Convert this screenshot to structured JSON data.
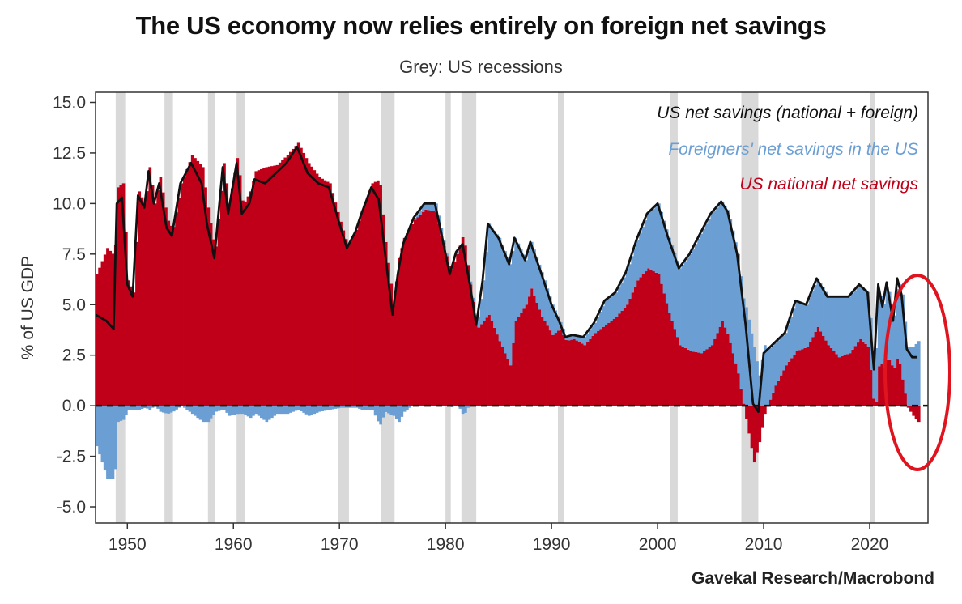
{
  "colors": {
    "total": "#111111",
    "foreign": "#6b9fd4",
    "national": "#c00018",
    "recession": "#d9d9d9",
    "annotation": "#e0141e"
  },
  "chart_data": {
    "type": "area",
    "title": "The US economy now relies entirely on foreign net savings",
    "subtitle": "Grey: US recessions",
    "ylabel": "% of US GDP",
    "xlabel": "",
    "source": "Gavekal Research/Macrobond",
    "xlim": [
      1947,
      2025.5
    ],
    "ylim": [
      -5.8,
      15.5
    ],
    "x_ticks": [
      1950,
      1960,
      1970,
      1980,
      1990,
      2000,
      2010,
      2020
    ],
    "y_ticks": [
      -5.0,
      -2.5,
      0.0,
      2.5,
      5.0,
      7.5,
      10.0,
      12.5,
      15.0
    ],
    "y_tick_labels": [
      "-5.0",
      "-2.5",
      "0.0",
      "2.5",
      "5.0",
      "7.5",
      "10.0",
      "12.5",
      "15.0"
    ],
    "x_tick_labels": [
      "1950",
      "1960",
      "1970",
      "1980",
      "1990",
      "2000",
      "2010",
      "2020"
    ],
    "legend_position": "top-right",
    "recessions": [
      [
        1948.9,
        1949.8
      ],
      [
        1953.5,
        1954.3
      ],
      [
        1957.6,
        1958.3
      ],
      [
        1960.3,
        1961.1
      ],
      [
        1969.9,
        1970.9
      ],
      [
        1973.9,
        1975.2
      ],
      [
        1980.0,
        1980.5
      ],
      [
        1981.5,
        1982.9
      ],
      [
        1990.6,
        1991.2
      ],
      [
        2001.2,
        2001.9
      ],
      [
        2007.9,
        2009.5
      ],
      [
        2020.0,
        2020.5
      ]
    ],
    "series": [
      {
        "name": "US net savings (national + foreign)",
        "x": [
          1947,
          1948,
          1948.7,
          1949,
          1949.5,
          1950,
          1950.5,
          1951,
          1951.6,
          1952,
          1952.5,
          1953,
          1953.7,
          1954.2,
          1955,
          1956,
          1957,
          1957.5,
          1958.2,
          1959,
          1959.5,
          1960.3,
          1960.8,
          1961.5,
          1962,
          1963,
          1964,
          1965,
          1966,
          1967,
          1968,
          1969,
          1970,
          1970.7,
          1971.5,
          1972,
          1973,
          1973.7,
          1974.2,
          1975,
          1975.5,
          1976,
          1977,
          1978,
          1979,
          1979.5,
          1980.4,
          1981,
          1981.6,
          1982.3,
          1982.9,
          1983.5,
          1984,
          1985,
          1986,
          1986.5,
          1987.5,
          1988,
          1989,
          1990,
          1990.7,
          1991.3,
          1992,
          1993,
          1994,
          1995,
          1996,
          1997,
          1998,
          1999,
          2000,
          2001,
          2002,
          2003,
          2004,
          2005,
          2006,
          2006.6,
          2007.5,
          2008.3,
          2009,
          2009.5,
          2010,
          2011,
          2012,
          2013,
          2014,
          2015,
          2016,
          2017,
          2018,
          2019,
          2019.8,
          2020.4,
          2020.8,
          2021.2,
          2021.6,
          2022.2,
          2022.6,
          2023,
          2023.5,
          2024,
          2024.5
        ],
        "values": [
          4.5,
          4.2,
          3.8,
          10.0,
          10.3,
          6.0,
          5.4,
          10.4,
          9.8,
          11.6,
          10.0,
          11.0,
          8.8,
          8.4,
          11.0,
          12.0,
          11.0,
          9.0,
          7.3,
          11.8,
          9.5,
          12.0,
          9.5,
          10.0,
          11.2,
          11.0,
          11.5,
          12.0,
          12.8,
          11.5,
          11.0,
          10.8,
          9.0,
          7.8,
          8.6,
          9.4,
          10.8,
          10.2,
          8.0,
          4.5,
          6.5,
          8.0,
          9.3,
          10.0,
          10.0,
          8.8,
          6.5,
          7.6,
          8.0,
          6.0,
          4.0,
          6.2,
          9.0,
          8.3,
          7.0,
          8.3,
          7.2,
          8.1,
          6.6,
          5.0,
          4.2,
          3.4,
          3.5,
          3.4,
          4.1,
          5.2,
          5.6,
          6.6,
          8.2,
          9.5,
          10.0,
          8.3,
          6.8,
          7.5,
          8.5,
          9.5,
          10.1,
          9.6,
          7.5,
          4.0,
          0.1,
          -0.3,
          2.6,
          3.1,
          3.6,
          5.2,
          5.0,
          6.3,
          5.4,
          5.4,
          5.4,
          6.0,
          5.6,
          1.8,
          6.0,
          4.9,
          6.1,
          4.2,
          6.3,
          5.5,
          2.8,
          2.4,
          2.4
        ]
      },
      {
        "name": "US national net savings",
        "x": [
          1947,
          1948,
          1948.7,
          1949,
          1949.5,
          1950,
          1950.5,
          1951,
          1951.6,
          1952,
          1952.5,
          1953,
          1953.7,
          1954.2,
          1955,
          1956,
          1957,
          1957.5,
          1958.2,
          1959,
          1959.5,
          1960.3,
          1960.8,
          1961.5,
          1962,
          1963,
          1964,
          1965,
          1966,
          1967,
          1968,
          1969,
          1970,
          1970.7,
          1971.5,
          1972,
          1973,
          1973.7,
          1974.2,
          1975,
          1975.5,
          1976,
          1977,
          1978,
          1979,
          1979.5,
          1980.4,
          1981,
          1981.6,
          1982.3,
          1982.9,
          1983.5,
          1984,
          1985,
          1986,
          1986.5,
          1987.5,
          1988,
          1989,
          1990,
          1990.7,
          1991.3,
          1992,
          1993,
          1994,
          1995,
          1996,
          1997,
          1998,
          1999,
          2000,
          2001,
          2002,
          2003,
          2004,
          2005,
          2006,
          2006.6,
          2007.5,
          2008.3,
          2009,
          2009.5,
          2010,
          2011,
          2012,
          2013,
          2014,
          2015,
          2016,
          2017,
          2018,
          2019,
          2019.8,
          2020.4,
          2020.8,
          2021.2,
          2021.6,
          2022.2,
          2022.6,
          2023,
          2023.5,
          2024,
          2024.5
        ],
        "values": [
          6.5,
          7.8,
          7.4,
          10.8,
          11.0,
          6.2,
          5.6,
          10.6,
          9.9,
          11.8,
          10.0,
          11.3,
          9.2,
          8.7,
          11.0,
          12.4,
          11.8,
          9.8,
          7.6,
          12.0,
          10.0,
          12.4,
          9.9,
          10.6,
          11.6,
          11.8,
          11.9,
          12.4,
          13.0,
          12.0,
          11.3,
          11.0,
          9.1,
          7.9,
          8.7,
          9.6,
          11.0,
          11.2,
          8.3,
          5.0,
          7.3,
          8.3,
          9.2,
          9.7,
          9.6,
          8.4,
          6.6,
          7.5,
          8.5,
          5.8,
          3.8,
          4.2,
          4.5,
          3.2,
          2.0,
          4.2,
          5.0,
          5.8,
          4.4,
          3.5,
          3.8,
          3.2,
          3.3,
          3.0,
          3.6,
          4.0,
          4.4,
          5.0,
          6.2,
          6.8,
          6.5,
          4.6,
          3.0,
          2.7,
          2.6,
          3.0,
          4.2,
          3.4,
          1.6,
          -0.8,
          -2.8,
          -1.8,
          -0.4,
          1.0,
          2.0,
          2.7,
          2.9,
          3.9,
          3.0,
          2.4,
          2.6,
          3.3,
          2.9,
          -0.5,
          2.3,
          1.8,
          2.4,
          1.8,
          2.5,
          1.3,
          -0.1,
          -0.5,
          -0.8
        ]
      },
      {
        "name": "Foreigners' net savings in the US",
        "x": [
          1947,
          1948,
          1948.7,
          1949,
          1949.5,
          1950,
          1950.5,
          1951,
          1951.6,
          1952,
          1952.5,
          1953,
          1953.7,
          1954.2,
          1955,
          1956,
          1957,
          1957.5,
          1958.2,
          1959,
          1959.5,
          1960.3,
          1960.8,
          1961.5,
          1962,
          1963,
          1964,
          1965,
          1966,
          1967,
          1968,
          1969,
          1970,
          1970.7,
          1971.5,
          1972,
          1973,
          1973.7,
          1974.2,
          1975,
          1975.5,
          1976,
          1977,
          1978,
          1979,
          1979.5,
          1980.4,
          1981,
          1981.6,
          1982.3,
          1982.9,
          1983.5,
          1984,
          1985,
          1986,
          1986.5,
          1987.5,
          1988,
          1989,
          1990,
          1990.7,
          1991.3,
          1992,
          1993,
          1994,
          1995,
          1996,
          1997,
          1998,
          1999,
          2000,
          2001,
          2002,
          2003,
          2004,
          2005,
          2006,
          2006.6,
          2007.5,
          2008.3,
          2009,
          2009.5,
          2010,
          2011,
          2012,
          2013,
          2014,
          2015,
          2016,
          2017,
          2018,
          2019,
          2019.8,
          2020.4,
          2020.8,
          2021.2,
          2021.6,
          2022.2,
          2022.6,
          2023,
          2023.5,
          2024,
          2024.5
        ],
        "values": [
          -2.0,
          -3.6,
          -3.6,
          -0.8,
          -0.7,
          -0.2,
          -0.2,
          -0.2,
          -0.1,
          -0.2,
          0.0,
          -0.3,
          -0.4,
          -0.3,
          0.0,
          -0.4,
          -0.8,
          -0.8,
          -0.3,
          -0.2,
          -0.5,
          -0.4,
          -0.4,
          -0.6,
          -0.4,
          -0.8,
          -0.4,
          -0.4,
          -0.2,
          -0.5,
          -0.3,
          -0.2,
          -0.1,
          -0.1,
          -0.1,
          -0.2,
          -0.2,
          -1.0,
          -0.3,
          -0.5,
          -0.8,
          -0.3,
          0.1,
          0.3,
          0.4,
          0.4,
          -0.1,
          0.1,
          -0.5,
          0.2,
          0.2,
          2.0,
          4.5,
          5.1,
          5.0,
          4.1,
          2.2,
          2.3,
          2.2,
          1.5,
          0.4,
          0.2,
          0.2,
          0.4,
          0.5,
          1.2,
          1.2,
          1.6,
          2.0,
          2.7,
          3.5,
          3.7,
          3.8,
          4.8,
          5.9,
          6.5,
          5.9,
          6.2,
          5.9,
          4.8,
          2.9,
          1.5,
          3.0,
          2.1,
          1.6,
          2.5,
          2.1,
          2.4,
          2.4,
          3.0,
          2.8,
          2.7,
          2.7,
          2.3,
          3.7,
          3.1,
          3.7,
          2.4,
          3.8,
          4.2,
          2.9,
          2.9,
          3.2
        ]
      }
    ]
  }
}
